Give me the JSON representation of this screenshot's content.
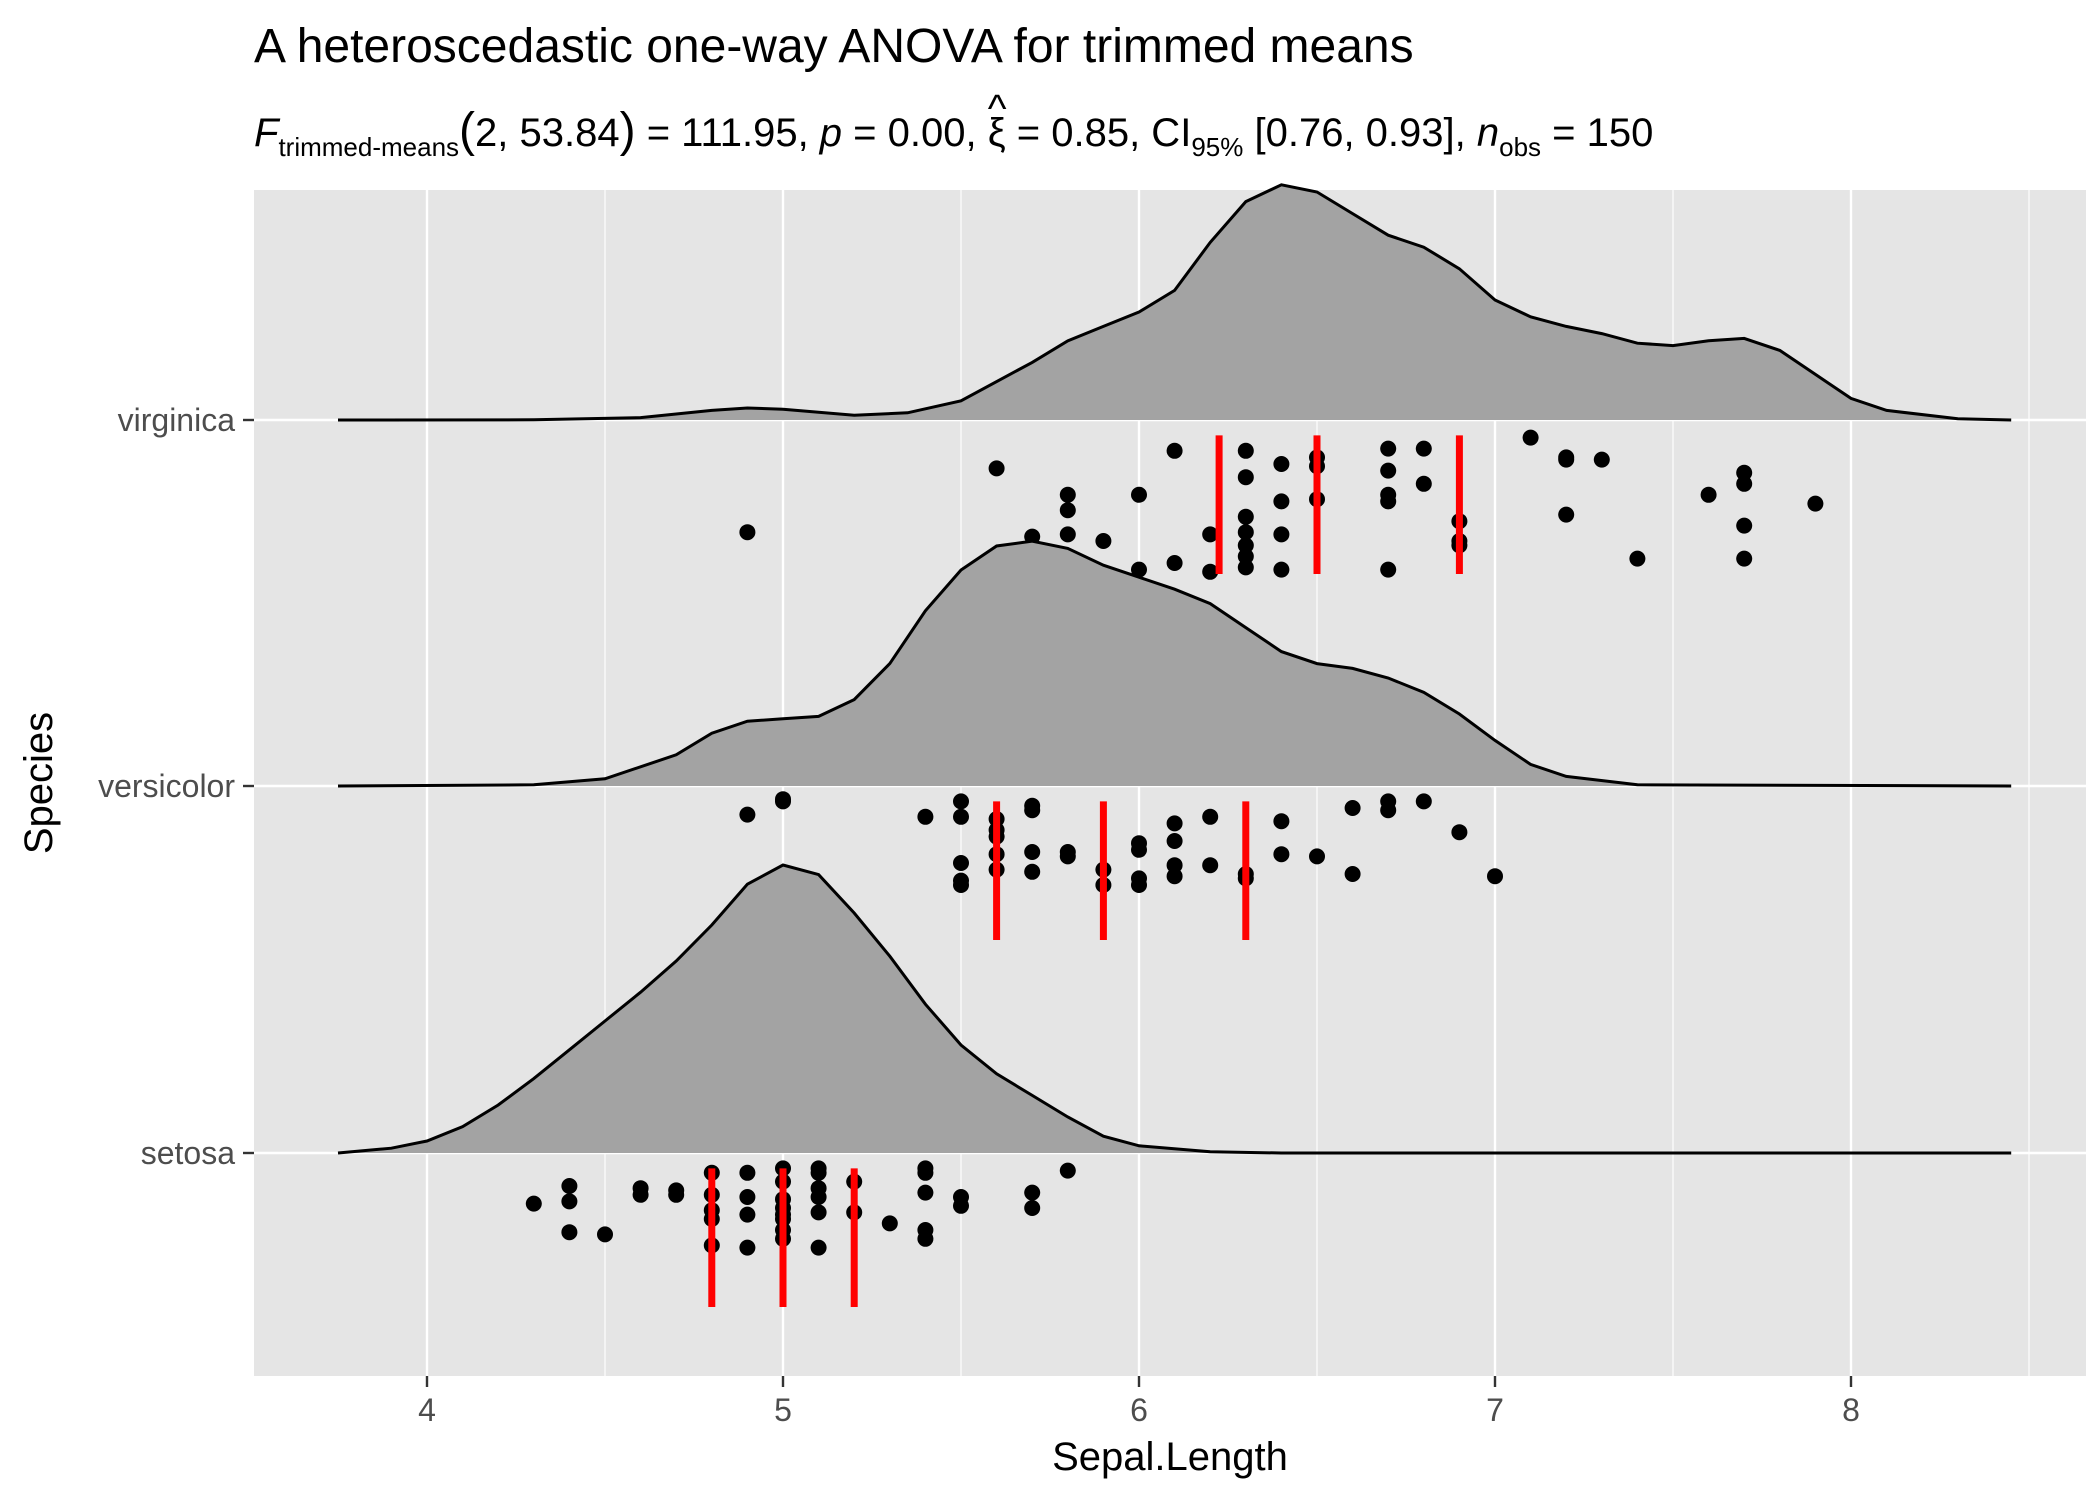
{
  "chart_data": {
    "type": "ridgeline",
    "title": "A heteroscedastic one-way ANOVA for trimmed means",
    "subtitle": {
      "F": "F",
      "F_sub": "trimmed-means",
      "df_open": "(",
      "df": "2, 53.84",
      "df_close": ")",
      "eq1": " = 111.95, ",
      "p": "p",
      "p_val": " = 0.00, ",
      "xi": "ξ",
      "xi_hat": "^",
      "xi_val": " = 0.85, CI",
      "ci_sub": "95%",
      "ci_val": " [0.76, 0.93], ",
      "n": "n",
      "n_sub": "obs",
      "n_val": " = 150"
    },
    "xlabel": "Sepal.Length",
    "ylabel": "Species",
    "xlim": [
      3.53,
      8.5
    ],
    "x_ticks": [
      "4",
      "5",
      "6",
      "7",
      "8"
    ],
    "x_tick_values": [
      4,
      5,
      6,
      7,
      8
    ],
    "grid": true,
    "colors": {
      "panel": "#e5e5e5",
      "grid": "#ffffff",
      "density_fill": "#a3a3a3",
      "density_line": "#000000",
      "points": "#000000",
      "quantile_lines": "#ff0000"
    },
    "groups": [
      {
        "name": "virginica",
        "density": [
          [
            3.75,
            0
          ],
          [
            4.3,
            0.001
          ],
          [
            4.6,
            0.01
          ],
          [
            4.8,
            0.04
          ],
          [
            4.9,
            0.05
          ],
          [
            5.0,
            0.045
          ],
          [
            5.2,
            0.02
          ],
          [
            5.35,
            0.03
          ],
          [
            5.5,
            0.08
          ],
          [
            5.7,
            0.24
          ],
          [
            5.8,
            0.33
          ],
          [
            5.9,
            0.39
          ],
          [
            6.0,
            0.45
          ],
          [
            6.1,
            0.54
          ],
          [
            6.2,
            0.74
          ],
          [
            6.3,
            0.91
          ],
          [
            6.4,
            0.98
          ],
          [
            6.5,
            0.95
          ],
          [
            6.6,
            0.86
          ],
          [
            6.7,
            0.77
          ],
          [
            6.8,
            0.72
          ],
          [
            6.9,
            0.63
          ],
          [
            7.0,
            0.5
          ],
          [
            7.1,
            0.43
          ],
          [
            7.2,
            0.39
          ],
          [
            7.3,
            0.36
          ],
          [
            7.4,
            0.32
          ],
          [
            7.5,
            0.31
          ],
          [
            7.6,
            0.33
          ],
          [
            7.7,
            0.34
          ],
          [
            7.8,
            0.29
          ],
          [
            7.9,
            0.19
          ],
          [
            8.0,
            0.09
          ],
          [
            8.1,
            0.04
          ],
          [
            8.3,
            0.005
          ],
          [
            8.45,
            0
          ]
        ],
        "points": [
          [
            7.1,
            0.08
          ],
          [
            6.1,
            0.14
          ],
          [
            6.3,
            0.14
          ],
          [
            6.7,
            0.13
          ],
          [
            6.8,
            0.13
          ],
          [
            6.5,
            0.17
          ],
          [
            6.4,
            0.2
          ],
          [
            6.3,
            0.26
          ],
          [
            6.5,
            0.21
          ],
          [
            7.2,
            0.18
          ],
          [
            7.2,
            0.17
          ],
          [
            7.3,
            0.18
          ],
          [
            5.6,
            0.22
          ],
          [
            6.7,
            0.23
          ],
          [
            6.8,
            0.29
          ],
          [
            7.7,
            0.24
          ],
          [
            7.7,
            0.29
          ],
          [
            5.8,
            0.34
          ],
          [
            6.0,
            0.34
          ],
          [
            6.4,
            0.37
          ],
          [
            6.5,
            0.36
          ],
          [
            6.7,
            0.34
          ],
          [
            6.7,
            0.37
          ],
          [
            7.6,
            0.34
          ],
          [
            7.9,
            0.38
          ],
          [
            5.8,
            0.41
          ],
          [
            7.2,
            0.43
          ],
          [
            6.3,
            0.44
          ],
          [
            6.9,
            0.46
          ],
          [
            7.7,
            0.48
          ],
          [
            4.9,
            0.51
          ],
          [
            5.7,
            0.53
          ],
          [
            5.8,
            0.52
          ],
          [
            5.9,
            0.55
          ],
          [
            6.2,
            0.52
          ],
          [
            6.3,
            0.51
          ],
          [
            6.3,
            0.57
          ],
          [
            6.4,
            0.52
          ],
          [
            6.9,
            0.55
          ],
          [
            6.9,
            0.57
          ],
          [
            6.3,
            0.62
          ],
          [
            6.1,
            0.65
          ],
          [
            6.0,
            0.68
          ],
          [
            6.2,
            0.69
          ],
          [
            6.4,
            0.68
          ],
          [
            6.7,
            0.68
          ],
          [
            6.3,
            0.67
          ],
          [
            7.4,
            0.63
          ],
          [
            7.7,
            0.63
          ]
        ],
        "quantiles": [
          6.225,
          6.5,
          6.9
        ]
      },
      {
        "name": "versicolor",
        "density": [
          [
            3.75,
            0
          ],
          [
            4.3,
            0.005
          ],
          [
            4.5,
            0.03
          ],
          [
            4.7,
            0.13
          ],
          [
            4.8,
            0.22
          ],
          [
            4.9,
            0.27
          ],
          [
            5.0,
            0.28
          ],
          [
            5.1,
            0.29
          ],
          [
            5.2,
            0.36
          ],
          [
            5.3,
            0.51
          ],
          [
            5.4,
            0.73
          ],
          [
            5.5,
            0.9
          ],
          [
            5.6,
            1.0
          ],
          [
            5.7,
            1.02
          ],
          [
            5.8,
            0.99
          ],
          [
            5.9,
            0.92
          ],
          [
            6.0,
            0.87
          ],
          [
            6.1,
            0.82
          ],
          [
            6.2,
            0.76
          ],
          [
            6.3,
            0.66
          ],
          [
            6.4,
            0.56
          ],
          [
            6.5,
            0.51
          ],
          [
            6.6,
            0.49
          ],
          [
            6.7,
            0.45
          ],
          [
            6.8,
            0.39
          ],
          [
            6.9,
            0.3
          ],
          [
            7.0,
            0.19
          ],
          [
            7.1,
            0.09
          ],
          [
            7.2,
            0.04
          ],
          [
            7.4,
            0.005
          ],
          [
            8.45,
            0
          ]
        ],
        "points": [
          [
            5.0,
            0.06
          ],
          [
            5.0,
            0.07
          ],
          [
            5.5,
            0.07
          ],
          [
            5.7,
            0.09
          ],
          [
            6.6,
            0.1
          ],
          [
            6.7,
            0.07
          ],
          [
            6.7,
            0.11
          ],
          [
            6.8,
            0.07
          ],
          [
            4.9,
            0.13
          ],
          [
            5.4,
            0.14
          ],
          [
            5.5,
            0.14
          ],
          [
            5.6,
            0.15
          ],
          [
            5.7,
            0.11
          ],
          [
            6.1,
            0.17
          ],
          [
            6.2,
            0.14
          ],
          [
            6.4,
            0.16
          ],
          [
            5.6,
            0.2
          ],
          [
            5.6,
            0.23
          ],
          [
            6.9,
            0.21
          ],
          [
            6.0,
            0.26
          ],
          [
            6.1,
            0.25
          ],
          [
            6.0,
            0.29
          ],
          [
            5.7,
            0.3
          ],
          [
            5.8,
            0.3
          ],
          [
            5.8,
            0.32
          ],
          [
            5.6,
            0.31
          ],
          [
            6.4,
            0.31
          ],
          [
            6.5,
            0.32
          ],
          [
            5.5,
            0.35
          ],
          [
            6.1,
            0.36
          ],
          [
            6.2,
            0.36
          ],
          [
            5.6,
            0.38
          ],
          [
            5.7,
            0.39
          ],
          [
            5.9,
            0.38
          ],
          [
            6.3,
            0.4
          ],
          [
            6.6,
            0.4
          ],
          [
            7.0,
            0.41
          ],
          [
            5.5,
            0.43
          ],
          [
            5.5,
            0.45
          ],
          [
            5.9,
            0.45
          ],
          [
            6.0,
            0.42
          ],
          [
            6.0,
            0.45
          ],
          [
            6.1,
            0.41
          ],
          [
            6.3,
            0.42
          ]
        ],
        "quantiles": [
          5.6,
          5.9,
          6.3
        ]
      },
      {
        "name": "setosa",
        "density": [
          [
            3.75,
            0
          ],
          [
            3.9,
            0.02
          ],
          [
            4.0,
            0.05
          ],
          [
            4.1,
            0.11
          ],
          [
            4.2,
            0.2
          ],
          [
            4.3,
            0.31
          ],
          [
            4.4,
            0.43
          ],
          [
            4.5,
            0.55
          ],
          [
            4.6,
            0.67
          ],
          [
            4.7,
            0.8
          ],
          [
            4.8,
            0.95
          ],
          [
            4.9,
            1.12
          ],
          [
            5.0,
            1.2
          ],
          [
            5.1,
            1.16
          ],
          [
            5.2,
            1.0
          ],
          [
            5.3,
            0.82
          ],
          [
            5.4,
            0.62
          ],
          [
            5.5,
            0.45
          ],
          [
            5.6,
            0.33
          ],
          [
            5.7,
            0.24
          ],
          [
            5.8,
            0.15
          ],
          [
            5.9,
            0.07
          ],
          [
            6.0,
            0.03
          ],
          [
            6.2,
            0.005
          ],
          [
            6.4,
            0
          ],
          [
            8.45,
            0
          ]
        ],
        "points": [
          [
            5.0,
            0.07
          ],
          [
            5.1,
            0.07
          ],
          [
            5.1,
            0.09
          ],
          [
            5.4,
            0.07
          ],
          [
            5.4,
            0.09
          ],
          [
            5.8,
            0.08
          ],
          [
            4.8,
            0.09
          ],
          [
            4.9,
            0.09
          ],
          [
            4.4,
            0.15
          ],
          [
            4.6,
            0.16
          ],
          [
            4.6,
            0.19
          ],
          [
            4.7,
            0.17
          ],
          [
            4.7,
            0.19
          ],
          [
            5.0,
            0.13
          ],
          [
            5.1,
            0.16
          ],
          [
            5.2,
            0.13
          ],
          [
            5.4,
            0.18
          ],
          [
            5.5,
            0.2
          ],
          [
            5.5,
            0.24
          ],
          [
            5.7,
            0.18
          ],
          [
            5.7,
            0.25
          ],
          [
            4.8,
            0.19
          ],
          [
            4.9,
            0.2
          ],
          [
            5.0,
            0.21
          ],
          [
            5.1,
            0.2
          ],
          [
            4.3,
            0.23
          ],
          [
            4.4,
            0.22
          ],
          [
            4.8,
            0.26
          ],
          [
            5.0,
            0.25
          ],
          [
            5.0,
            0.28
          ],
          [
            5.1,
            0.27
          ],
          [
            5.2,
            0.27
          ],
          [
            4.8,
            0.3
          ],
          [
            4.9,
            0.28
          ],
          [
            5.0,
            0.3
          ],
          [
            5.3,
            0.32
          ],
          [
            5.4,
            0.35
          ],
          [
            5.4,
            0.39
          ],
          [
            4.4,
            0.36
          ],
          [
            4.5,
            0.37
          ],
          [
            5.0,
            0.35
          ],
          [
            5.0,
            0.39
          ],
          [
            4.8,
            0.42
          ],
          [
            4.9,
            0.43
          ],
          [
            5.1,
            0.43
          ]
        ],
        "quantiles": [
          4.8,
          5.0,
          5.2
        ]
      }
    ]
  }
}
